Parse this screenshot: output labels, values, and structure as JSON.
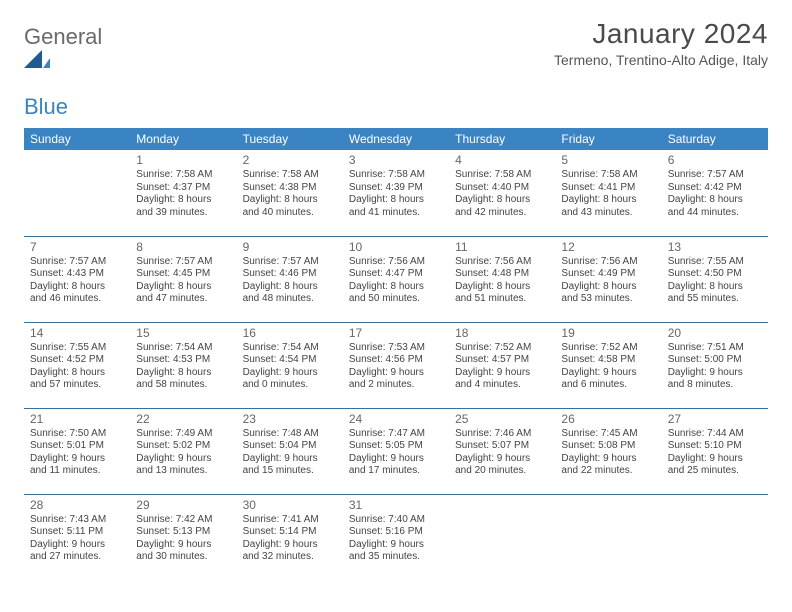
{
  "logo": {
    "text1": "General",
    "text2": "Blue"
  },
  "title": "January 2024",
  "location": "Termeno, Trentino-Alto Adige, Italy",
  "colors": {
    "header_bg": "#3a84c4",
    "header_text": "#ffffff",
    "row_border": "#3a6f9a",
    "body_text": "#444444",
    "title_text": "#4a4a4a",
    "logo_gray": "#6a6a6a",
    "logo_blue": "#3a84c4",
    "page_bg": "#ffffff"
  },
  "weekdays": [
    "Sunday",
    "Monday",
    "Tuesday",
    "Wednesday",
    "Thursday",
    "Friday",
    "Saturday"
  ],
  "weeks": [
    [
      {
        "day": "",
        "sunrise": "",
        "sunset": "",
        "daylight": ""
      },
      {
        "day": "1",
        "sunrise": "Sunrise: 7:58 AM",
        "sunset": "Sunset: 4:37 PM",
        "daylight": "Daylight: 8 hours and 39 minutes."
      },
      {
        "day": "2",
        "sunrise": "Sunrise: 7:58 AM",
        "sunset": "Sunset: 4:38 PM",
        "daylight": "Daylight: 8 hours and 40 minutes."
      },
      {
        "day": "3",
        "sunrise": "Sunrise: 7:58 AM",
        "sunset": "Sunset: 4:39 PM",
        "daylight": "Daylight: 8 hours and 41 minutes."
      },
      {
        "day": "4",
        "sunrise": "Sunrise: 7:58 AM",
        "sunset": "Sunset: 4:40 PM",
        "daylight": "Daylight: 8 hours and 42 minutes."
      },
      {
        "day": "5",
        "sunrise": "Sunrise: 7:58 AM",
        "sunset": "Sunset: 4:41 PM",
        "daylight": "Daylight: 8 hours and 43 minutes."
      },
      {
        "day": "6",
        "sunrise": "Sunrise: 7:57 AM",
        "sunset": "Sunset: 4:42 PM",
        "daylight": "Daylight: 8 hours and 44 minutes."
      }
    ],
    [
      {
        "day": "7",
        "sunrise": "Sunrise: 7:57 AM",
        "sunset": "Sunset: 4:43 PM",
        "daylight": "Daylight: 8 hours and 46 minutes."
      },
      {
        "day": "8",
        "sunrise": "Sunrise: 7:57 AM",
        "sunset": "Sunset: 4:45 PM",
        "daylight": "Daylight: 8 hours and 47 minutes."
      },
      {
        "day": "9",
        "sunrise": "Sunrise: 7:57 AM",
        "sunset": "Sunset: 4:46 PM",
        "daylight": "Daylight: 8 hours and 48 minutes."
      },
      {
        "day": "10",
        "sunrise": "Sunrise: 7:56 AM",
        "sunset": "Sunset: 4:47 PM",
        "daylight": "Daylight: 8 hours and 50 minutes."
      },
      {
        "day": "11",
        "sunrise": "Sunrise: 7:56 AM",
        "sunset": "Sunset: 4:48 PM",
        "daylight": "Daylight: 8 hours and 51 minutes."
      },
      {
        "day": "12",
        "sunrise": "Sunrise: 7:56 AM",
        "sunset": "Sunset: 4:49 PM",
        "daylight": "Daylight: 8 hours and 53 minutes."
      },
      {
        "day": "13",
        "sunrise": "Sunrise: 7:55 AM",
        "sunset": "Sunset: 4:50 PM",
        "daylight": "Daylight: 8 hours and 55 minutes."
      }
    ],
    [
      {
        "day": "14",
        "sunrise": "Sunrise: 7:55 AM",
        "sunset": "Sunset: 4:52 PM",
        "daylight": "Daylight: 8 hours and 57 minutes."
      },
      {
        "day": "15",
        "sunrise": "Sunrise: 7:54 AM",
        "sunset": "Sunset: 4:53 PM",
        "daylight": "Daylight: 8 hours and 58 minutes."
      },
      {
        "day": "16",
        "sunrise": "Sunrise: 7:54 AM",
        "sunset": "Sunset: 4:54 PM",
        "daylight": "Daylight: 9 hours and 0 minutes."
      },
      {
        "day": "17",
        "sunrise": "Sunrise: 7:53 AM",
        "sunset": "Sunset: 4:56 PM",
        "daylight": "Daylight: 9 hours and 2 minutes."
      },
      {
        "day": "18",
        "sunrise": "Sunrise: 7:52 AM",
        "sunset": "Sunset: 4:57 PM",
        "daylight": "Daylight: 9 hours and 4 minutes."
      },
      {
        "day": "19",
        "sunrise": "Sunrise: 7:52 AM",
        "sunset": "Sunset: 4:58 PM",
        "daylight": "Daylight: 9 hours and 6 minutes."
      },
      {
        "day": "20",
        "sunrise": "Sunrise: 7:51 AM",
        "sunset": "Sunset: 5:00 PM",
        "daylight": "Daylight: 9 hours and 8 minutes."
      }
    ],
    [
      {
        "day": "21",
        "sunrise": "Sunrise: 7:50 AM",
        "sunset": "Sunset: 5:01 PM",
        "daylight": "Daylight: 9 hours and 11 minutes."
      },
      {
        "day": "22",
        "sunrise": "Sunrise: 7:49 AM",
        "sunset": "Sunset: 5:02 PM",
        "daylight": "Daylight: 9 hours and 13 minutes."
      },
      {
        "day": "23",
        "sunrise": "Sunrise: 7:48 AM",
        "sunset": "Sunset: 5:04 PM",
        "daylight": "Daylight: 9 hours and 15 minutes."
      },
      {
        "day": "24",
        "sunrise": "Sunrise: 7:47 AM",
        "sunset": "Sunset: 5:05 PM",
        "daylight": "Daylight: 9 hours and 17 minutes."
      },
      {
        "day": "25",
        "sunrise": "Sunrise: 7:46 AM",
        "sunset": "Sunset: 5:07 PM",
        "daylight": "Daylight: 9 hours and 20 minutes."
      },
      {
        "day": "26",
        "sunrise": "Sunrise: 7:45 AM",
        "sunset": "Sunset: 5:08 PM",
        "daylight": "Daylight: 9 hours and 22 minutes."
      },
      {
        "day": "27",
        "sunrise": "Sunrise: 7:44 AM",
        "sunset": "Sunset: 5:10 PM",
        "daylight": "Daylight: 9 hours and 25 minutes."
      }
    ],
    [
      {
        "day": "28",
        "sunrise": "Sunrise: 7:43 AM",
        "sunset": "Sunset: 5:11 PM",
        "daylight": "Daylight: 9 hours and 27 minutes."
      },
      {
        "day": "29",
        "sunrise": "Sunrise: 7:42 AM",
        "sunset": "Sunset: 5:13 PM",
        "daylight": "Daylight: 9 hours and 30 minutes."
      },
      {
        "day": "30",
        "sunrise": "Sunrise: 7:41 AM",
        "sunset": "Sunset: 5:14 PM",
        "daylight": "Daylight: 9 hours and 32 minutes."
      },
      {
        "day": "31",
        "sunrise": "Sunrise: 7:40 AM",
        "sunset": "Sunset: 5:16 PM",
        "daylight": "Daylight: 9 hours and 35 minutes."
      },
      {
        "day": "",
        "sunrise": "",
        "sunset": "",
        "daylight": ""
      },
      {
        "day": "",
        "sunrise": "",
        "sunset": "",
        "daylight": ""
      },
      {
        "day": "",
        "sunrise": "",
        "sunset": "",
        "daylight": ""
      }
    ]
  ]
}
